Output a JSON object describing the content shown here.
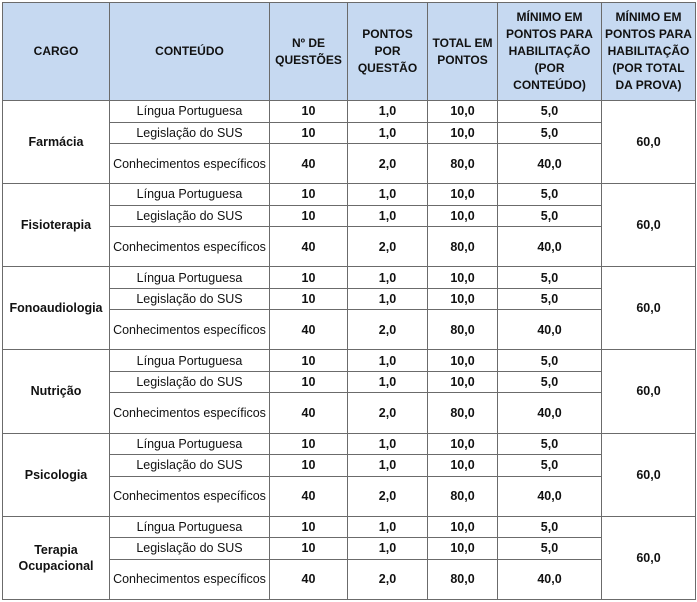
{
  "headers": {
    "cargo": "CARGO",
    "conteudo": "CONTEÚDO",
    "questoes": "Nº DE QUESTÕES",
    "pontos_questao": "PONTOS POR QUESTÃO",
    "total": "TOTAL EM PONTOS",
    "minimo_conteudo": "MÍNIMO EM PONTOS PARA HABILITAÇÃO (POR CONTEÚDO)",
    "minimo_total": "MÍNIMO EM PONTOS PARA HABILITAÇÃO (POR TOTAL DA PROVA)"
  },
  "rows": [
    {
      "cargo": "Farmácia",
      "minimo_total": "60,0",
      "items": [
        {
          "conteudo": "Língua Portuguesa",
          "questoes": "10",
          "pontos": "1,0",
          "total": "10,0",
          "minimo": "5,0"
        },
        {
          "conteudo": "Legislação do SUS",
          "questoes": "10",
          "pontos": "1,0",
          "total": "10,0",
          "minimo": "5,0"
        },
        {
          "conteudo": "Conhecimentos específicos",
          "questoes": "40",
          "pontos": "2,0",
          "total": "80,0",
          "minimo": "40,0"
        }
      ]
    },
    {
      "cargo": "Fisioterapia",
      "minimo_total": "60,0",
      "items": [
        {
          "conteudo": "Língua Portuguesa",
          "questoes": "10",
          "pontos": "1,0",
          "total": "10,0",
          "minimo": "5,0"
        },
        {
          "conteudo": "Legislação do SUS",
          "questoes": "10",
          "pontos": "1,0",
          "total": "10,0",
          "minimo": "5,0"
        },
        {
          "conteudo": "Conhecimentos específicos",
          "questoes": "40",
          "pontos": "2,0",
          "total": "80,0",
          "minimo": "40,0"
        }
      ]
    },
    {
      "cargo": "Fonoaudiologia",
      "minimo_total": "60,0",
      "items": [
        {
          "conteudo": "Língua Portuguesa",
          "questoes": "10",
          "pontos": "1,0",
          "total": "10,0",
          "minimo": "5,0"
        },
        {
          "conteudo": "Legislação do SUS",
          "questoes": "10",
          "pontos": "1,0",
          "total": "10,0",
          "minimo": "5,0"
        },
        {
          "conteudo": "Conhecimentos específicos",
          "questoes": "40",
          "pontos": "2,0",
          "total": "80,0",
          "minimo": "40,0"
        }
      ]
    },
    {
      "cargo": "Nutrição",
      "minimo_total": "60,0",
      "items": [
        {
          "conteudo": "Língua Portuguesa",
          "questoes": "10",
          "pontos": "1,0",
          "total": "10,0",
          "minimo": "5,0"
        },
        {
          "conteudo": "Legislação do SUS",
          "questoes": "10",
          "pontos": "1,0",
          "total": "10,0",
          "minimo": "5,0"
        },
        {
          "conteudo": "Conhecimentos específicos",
          "questoes": "40",
          "pontos": "2,0",
          "total": "80,0",
          "minimo": "40,0"
        }
      ]
    },
    {
      "cargo": "Psicologia",
      "minimo_total": "60,0",
      "items": [
        {
          "conteudo": "Língua Portuguesa",
          "questoes": "10",
          "pontos": "1,0",
          "total": "10,0",
          "minimo": "5,0"
        },
        {
          "conteudo": "Legislação do SUS",
          "questoes": "10",
          "pontos": "1,0",
          "total": "10,0",
          "minimo": "5,0"
        },
        {
          "conteudo": "Conhecimentos específicos",
          "questoes": "40",
          "pontos": "2,0",
          "total": "80,0",
          "minimo": "40,0"
        }
      ]
    },
    {
      "cargo": "Terapia Ocupacional",
      "minimo_total": "60,0",
      "items": [
        {
          "conteudo": "Língua Portuguesa",
          "questoes": "10",
          "pontos": "1,0",
          "total": "10,0",
          "minimo": "5,0"
        },
        {
          "conteudo": "Legislação do SUS",
          "questoes": "10",
          "pontos": "1,0",
          "total": "10,0",
          "minimo": "5,0"
        },
        {
          "conteudo": "Conhecimentos específicos",
          "questoes": "40",
          "pontos": "2,0",
          "total": "80,0",
          "minimo": "40,0"
        }
      ]
    }
  ]
}
